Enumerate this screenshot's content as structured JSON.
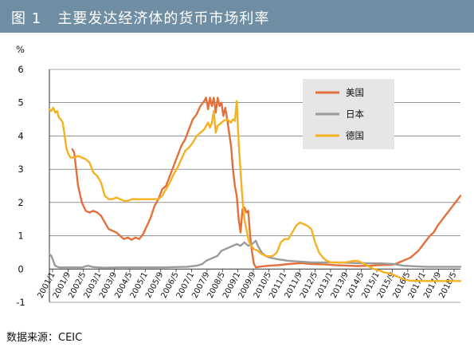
{
  "header": {
    "title": "图 1   主要发达经济体的货币市场利率"
  },
  "footer": {
    "source": "数据来源：CEIC"
  },
  "chart_data": {
    "type": "line",
    "unit_label": "%",
    "ylim": [
      -1,
      6
    ],
    "y_ticks": [
      -1,
      0,
      1,
      2,
      3,
      4,
      5,
      6
    ],
    "grid": true,
    "legend_position": "top-right",
    "x_tick_labels": [
      "2001/1",
      "2001/9",
      "2002/5",
      "2003/1",
      "2003/9",
      "2004/5",
      "2005/1",
      "2005/9",
      "2006/5",
      "2007/1",
      "2007/9",
      "2008/5",
      "2009/1",
      "2009/9",
      "2010/5",
      "2011/1",
      "2011/9",
      "2012/5",
      "2013/1",
      "2013/9",
      "2014/5",
      "2015/1",
      "2015/9",
      "2016/5",
      "2017/1",
      "2017/9",
      "2018/5"
    ],
    "x_range": [
      "2001/1",
      "2018/12"
    ],
    "series": [
      {
        "name": "美国",
        "color": "#e2703a",
        "points": [
          [
            "2002/1",
            3.6
          ],
          [
            "2002/2",
            3.5
          ],
          [
            "2002/4",
            2.5
          ],
          [
            "2002/6",
            2.0
          ],
          [
            "2002/8",
            1.75
          ],
          [
            "2002/10",
            1.7
          ],
          [
            "2002/12",
            1.75
          ],
          [
            "2003/2",
            1.7
          ],
          [
            "2003/4",
            1.6
          ],
          [
            "2003/6",
            1.4
          ],
          [
            "2003/8",
            1.2
          ],
          [
            "2003/10",
            1.15
          ],
          [
            "2003/12",
            1.1
          ],
          [
            "2004/2",
            1.0
          ],
          [
            "2004/4",
            0.9
          ],
          [
            "2004/6",
            0.95
          ],
          [
            "2004/8",
            0.88
          ],
          [
            "2004/10",
            0.95
          ],
          [
            "2004/12",
            0.9
          ],
          [
            "2005/2",
            1.05
          ],
          [
            "2005/4",
            1.3
          ],
          [
            "2005/6",
            1.55
          ],
          [
            "2005/8",
            1.9
          ],
          [
            "2005/10",
            2.1
          ],
          [
            "2005/12",
            2.4
          ],
          [
            "2006/2",
            2.5
          ],
          [
            "2006/4",
            2.8
          ],
          [
            "2006/6",
            3.1
          ],
          [
            "2006/8",
            3.4
          ],
          [
            "2006/10",
            3.7
          ],
          [
            "2006/12",
            3.9
          ],
          [
            "2007/2",
            4.2
          ],
          [
            "2007/4",
            4.5
          ],
          [
            "2007/6",
            4.65
          ],
          [
            "2007/8",
            4.9
          ],
          [
            "2007/10",
            5.05
          ],
          [
            "2007/11",
            5.15
          ],
          [
            "2007/12",
            4.8
          ],
          [
            "2008/1",
            5.15
          ],
          [
            "2008/2",
            4.9
          ],
          [
            "2008/3",
            5.15
          ],
          [
            "2008/4",
            4.7
          ],
          [
            "2008/5",
            5.15
          ],
          [
            "2008/6",
            4.9
          ],
          [
            "2008/7",
            5.0
          ],
          [
            "2008/8",
            4.6
          ],
          [
            "2008/9",
            4.85
          ],
          [
            "2008/10",
            4.5
          ],
          [
            "2008/11",
            4.1
          ],
          [
            "2008/12",
            3.7
          ],
          [
            "2009/1",
            3.0
          ],
          [
            "2009/2",
            2.5
          ],
          [
            "2009/3",
            2.2
          ],
          [
            "2009/4",
            1.5
          ],
          [
            "2009/5",
            1.1
          ],
          [
            "2009/6",
            1.8
          ],
          [
            "2009/7",
            1.85
          ],
          [
            "2009/8",
            1.7
          ],
          [
            "2009/9",
            1.75
          ],
          [
            "2009/10",
            1.0
          ],
          [
            "2009/11",
            0.5
          ],
          [
            "2009/12",
            0.15
          ],
          [
            "2010/1",
            0.05
          ],
          [
            "2010/4",
            0.08
          ],
          [
            "2010/8",
            0.1
          ],
          [
            "2011/1",
            0.12
          ],
          [
            "2011/6",
            0.15
          ],
          [
            "2012/1",
            0.18
          ],
          [
            "2012/6",
            0.15
          ],
          [
            "2013/1",
            0.14
          ],
          [
            "2013/6",
            0.12
          ],
          [
            "2014/1",
            0.1
          ],
          [
            "2014/6",
            0.09
          ],
          [
            "2015/1",
            0.1
          ],
          [
            "2015/6",
            0.12
          ],
          [
            "2015/12",
            0.13
          ],
          [
            "2016/2",
            0.15
          ],
          [
            "2016/4",
            0.2
          ],
          [
            "2016/6",
            0.25
          ],
          [
            "2016/8",
            0.3
          ],
          [
            "2016/10",
            0.35
          ],
          [
            "2016/12",
            0.45
          ],
          [
            "2017/2",
            0.55
          ],
          [
            "2017/4",
            0.7
          ],
          [
            "2017/6",
            0.85
          ],
          [
            "2017/8",
            1.0
          ],
          [
            "2017/10",
            1.1
          ],
          [
            "2017/12",
            1.3
          ],
          [
            "2018/2",
            1.45
          ],
          [
            "2018/4",
            1.6
          ],
          [
            "2018/6",
            1.75
          ],
          [
            "2018/8",
            1.9
          ],
          [
            "2018/10",
            2.05
          ],
          [
            "2018/12",
            2.2
          ]
        ]
      },
      {
        "name": "日本",
        "color": "#9b9b9b",
        "points": [
          [
            "2001/1",
            0.45
          ],
          [
            "2001/2",
            0.4
          ],
          [
            "2001/3",
            0.25
          ],
          [
            "2001/4",
            0.1
          ],
          [
            "2001/6",
            0.05
          ],
          [
            "2002/1",
            0.05
          ],
          [
            "2002/6",
            0.05
          ],
          [
            "2002/9",
            0.1
          ],
          [
            "2002/12",
            0.06
          ],
          [
            "2003/6",
            0.04
          ],
          [
            "2004/1",
            0.05
          ],
          [
            "2005/1",
            0.05
          ],
          [
            "2006/1",
            0.05
          ],
          [
            "2006/6",
            0.06
          ],
          [
            "2007/1",
            0.07
          ],
          [
            "2007/6",
            0.1
          ],
          [
            "2007/9",
            0.15
          ],
          [
            "2007/11",
            0.25
          ],
          [
            "2008/1",
            0.3
          ],
          [
            "2008/3",
            0.35
          ],
          [
            "2008/5",
            0.4
          ],
          [
            "2008/7",
            0.55
          ],
          [
            "2008/9",
            0.6
          ],
          [
            "2008/11",
            0.65
          ],
          [
            "2009/1",
            0.7
          ],
          [
            "2009/3",
            0.75
          ],
          [
            "2009/5",
            0.7
          ],
          [
            "2009/7",
            0.8
          ],
          [
            "2009/9",
            0.7
          ],
          [
            "2009/11",
            0.75
          ],
          [
            "2010/1",
            0.85
          ],
          [
            "2010/2",
            0.7
          ],
          [
            "2010/3",
            0.6
          ],
          [
            "2010/4",
            0.5
          ],
          [
            "2010/6",
            0.4
          ],
          [
            "2010/8",
            0.35
          ],
          [
            "2010/12",
            0.3
          ],
          [
            "2011/6",
            0.25
          ],
          [
            "2012/1",
            0.22
          ],
          [
            "2012/6",
            0.2
          ],
          [
            "2013/6",
            0.2
          ],
          [
            "2014/6",
            0.18
          ],
          [
            "2015/6",
            0.17
          ],
          [
            "2016/1",
            0.15
          ],
          [
            "2016/6",
            0.1
          ],
          [
            "2017/1",
            0.08
          ],
          [
            "2017/6",
            0.07
          ],
          [
            "2018/1",
            0.07
          ],
          [
            "2018/12",
            0.07
          ]
        ]
      },
      {
        "name": "德国",
        "color": "#f5b121",
        "points": [
          [
            "2001/1",
            4.8
          ],
          [
            "2001/2",
            4.75
          ],
          [
            "2001/3",
            4.85
          ],
          [
            "2001/4",
            4.7
          ],
          [
            "2001/5",
            4.75
          ],
          [
            "2001/6",
            4.55
          ],
          [
            "2001/7",
            4.5
          ],
          [
            "2001/8",
            4.4
          ],
          [
            "2001/9",
            4.0
          ],
          [
            "2001/10",
            3.6
          ],
          [
            "2001/11",
            3.45
          ],
          [
            "2001/12",
            3.35
          ],
          [
            "2002/2",
            3.35
          ],
          [
            "2002/4",
            3.4
          ],
          [
            "2002/6",
            3.35
          ],
          [
            "2002/8",
            3.3
          ],
          [
            "2002/10",
            3.2
          ],
          [
            "2002/12",
            2.9
          ],
          [
            "2003/2",
            2.8
          ],
          [
            "2003/4",
            2.6
          ],
          [
            "2003/6",
            2.2
          ],
          [
            "2003/8",
            2.1
          ],
          [
            "2003/10",
            2.1
          ],
          [
            "2003/12",
            2.15
          ],
          [
            "2004/2",
            2.1
          ],
          [
            "2004/4",
            2.05
          ],
          [
            "2004/6",
            2.05
          ],
          [
            "2004/8",
            2.1
          ],
          [
            "2004/10",
            2.1
          ],
          [
            "2004/12",
            2.1
          ],
          [
            "2005/2",
            2.1
          ],
          [
            "2005/4",
            2.1
          ],
          [
            "2005/6",
            2.1
          ],
          [
            "2005/8",
            2.1
          ],
          [
            "2005/10",
            2.1
          ],
          [
            "2005/12",
            2.2
          ],
          [
            "2006/2",
            2.4
          ],
          [
            "2006/4",
            2.6
          ],
          [
            "2006/6",
            2.85
          ],
          [
            "2006/8",
            3.05
          ],
          [
            "2006/10",
            3.3
          ],
          [
            "2006/12",
            3.55
          ],
          [
            "2007/2",
            3.65
          ],
          [
            "2007/4",
            3.8
          ],
          [
            "2007/6",
            4.0
          ],
          [
            "2007/8",
            4.1
          ],
          [
            "2007/10",
            4.2
          ],
          [
            "2007/12",
            4.4
          ],
          [
            "2008/1",
            4.25
          ],
          [
            "2008/2",
            4.4
          ],
          [
            "2008/3",
            4.75
          ],
          [
            "2008/4",
            4.1
          ],
          [
            "2008/5",
            4.3
          ],
          [
            "2008/6",
            4.35
          ],
          [
            "2008/7",
            4.4
          ],
          [
            "2008/8",
            4.45
          ],
          [
            "2008/10",
            4.5
          ],
          [
            "2008/12",
            4.4
          ],
          [
            "2009/1",
            4.5
          ],
          [
            "2009/2",
            4.45
          ],
          [
            "2009/3",
            5.05
          ],
          [
            "2009/4",
            3.8
          ],
          [
            "2009/5",
            2.9
          ],
          [
            "2009/6",
            2.1
          ],
          [
            "2009/7",
            1.5
          ],
          [
            "2009/8",
            1.2
          ],
          [
            "2009/9",
            0.9
          ],
          [
            "2009/10",
            0.75
          ],
          [
            "2009/12",
            0.6
          ],
          [
            "2010/2",
            0.55
          ],
          [
            "2010/4",
            0.45
          ],
          [
            "2010/6",
            0.4
          ],
          [
            "2010/8",
            0.38
          ],
          [
            "2010/10",
            0.4
          ],
          [
            "2010/12",
            0.5
          ],
          [
            "2011/2",
            0.8
          ],
          [
            "2011/4",
            0.9
          ],
          [
            "2011/6",
            0.9
          ],
          [
            "2011/8",
            1.1
          ],
          [
            "2011/10",
            1.3
          ],
          [
            "2011/12",
            1.4
          ],
          [
            "2012/2",
            1.35
          ],
          [
            "2012/4",
            1.3
          ],
          [
            "2012/6",
            1.2
          ],
          [
            "2012/8",
            0.8
          ],
          [
            "2012/10",
            0.5
          ],
          [
            "2012/12",
            0.35
          ],
          [
            "2013/2",
            0.25
          ],
          [
            "2013/4",
            0.2
          ],
          [
            "2013/6",
            0.2
          ],
          [
            "2013/8",
            0.2
          ],
          [
            "2013/10",
            0.2
          ],
          [
            "2013/12",
            0.2
          ],
          [
            "2014/2",
            0.22
          ],
          [
            "2014/4",
            0.25
          ],
          [
            "2014/6",
            0.25
          ],
          [
            "2014/8",
            0.2
          ],
          [
            "2014/10",
            0.15
          ],
          [
            "2014/12",
            0.08
          ],
          [
            "2015/2",
            0.02
          ],
          [
            "2015/4",
            -0.02
          ],
          [
            "2015/6",
            -0.05
          ],
          [
            "2015/8",
            -0.1
          ],
          [
            "2015/10",
            -0.12
          ],
          [
            "2015/12",
            -0.15
          ],
          [
            "2016/2",
            -0.2
          ],
          [
            "2016/4",
            -0.25
          ],
          [
            "2016/6",
            -0.3
          ],
          [
            "2016/8",
            -0.33
          ],
          [
            "2016/10",
            -0.35
          ],
          [
            "2016/12",
            -0.35
          ],
          [
            "2017/6",
            -0.36
          ],
          [
            "2018/1",
            -0.36
          ],
          [
            "2018/12",
            -0.36
          ]
        ]
      }
    ]
  }
}
